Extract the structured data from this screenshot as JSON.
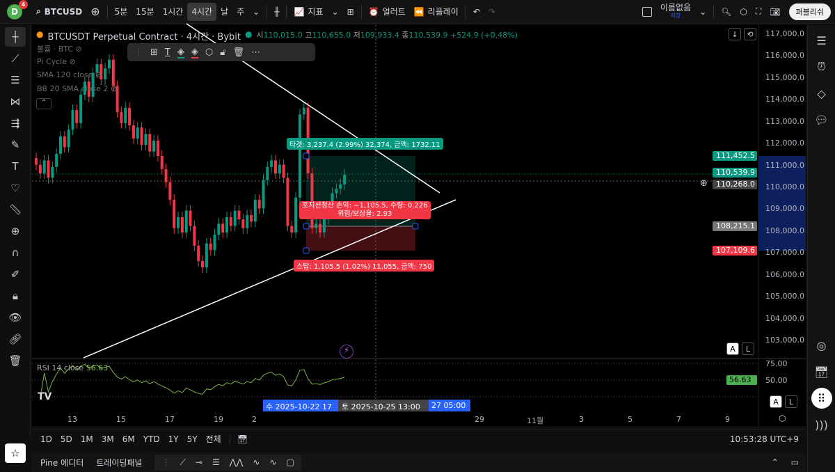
{
  "topbar": {
    "avatar": "D",
    "notifications": "4",
    "symbol": "BTCUSD",
    "intervals": [
      "5분",
      "15분",
      "1시간",
      "4시간",
      "날",
      "주"
    ],
    "active_interval": "4시간",
    "indicators": "지표",
    "alert": "얼러트",
    "replay": "리플레이",
    "layout_name": "이름없음",
    "layout_status": "저장",
    "publish": "퍼블리쉬"
  },
  "legend": {
    "title": "BTCUSDT Perpetual Contract · 4시간 · Bybit",
    "o_label": "시",
    "o": "110,015.0",
    "h_label": "고",
    "h": "110,655.0",
    "l_label": "저",
    "l": "109,933.4",
    "c_label": "종",
    "c": "110,539.9",
    "change": "+524.9 (+0.48%)"
  },
  "indicators": [
    "볼륨 · BTC",
    "Pi Cycle",
    "SMA 120 close",
    "BB 20 SMA close 2"
  ],
  "price_axis": [
    "117,000.0",
    "116,000.0",
    "115,000.0",
    "114,000.0",
    "113,000.0",
    "112,000.0",
    "111,000.0",
    "110,000.0",
    "109,000.0",
    "108,000.0",
    "107,000.0",
    "106,000.0",
    "105,000.0",
    "104,000.0",
    "103,000.0"
  ],
  "price_tags": {
    "target": "111,452.5",
    "last": "110,539.9",
    "crosshair": "110,268.0",
    "entry": "108,215.1",
    "stop": "107,109.6"
  },
  "colors": {
    "up": "#089981",
    "down": "#f23645",
    "target": "#089981",
    "stop": "#f23645",
    "accent": "#2962ff"
  },
  "position": {
    "target_label": "타겟: 3,237.4 (2.99%) 32,374, 금액: 1732.11",
    "pnl_label": "포지션청산 손익: −1,105.5, 수량: 0.226",
    "ratio_label": "위험/보상율: 2.93",
    "stop_label": "스탑: 1,105.5 (1.02%) 11,055, 금액: 750"
  },
  "rsi": {
    "label": "RSI 14 close",
    "value": "56.63",
    "axis": [
      "75.00",
      "50.00"
    ]
  },
  "time_axis": [
    "13",
    "15",
    "17",
    "19",
    "2",
    "29",
    "11월",
    "3",
    "5",
    "7",
    "9"
  ],
  "time_tags": [
    "수 2025-10-22  17",
    "토 2025-10-25  13:00",
    "27  05:00"
  ],
  "candles_close": [
    111000,
    110600,
    111200,
    110400,
    110900,
    111500,
    112300,
    111800,
    112600,
    113500,
    112900,
    114200,
    114800,
    114100,
    115200,
    115600,
    114900,
    115400,
    115800,
    114600,
    113400,
    112900,
    113600,
    112800,
    112200,
    112700,
    111900,
    112400,
    111600,
    112100,
    111400,
    110800,
    110200,
    109400,
    108100,
    108600,
    107900,
    108900,
    108200,
    107300,
    106600,
    106300,
    107400,
    107100,
    107800,
    108300,
    107900,
    108600,
    108200,
    108900,
    108500,
    108100,
    108700,
    108400,
    109400,
    109000,
    110300,
    110900,
    111200,
    110600,
    111000,
    110400,
    108200,
    107900,
    109500,
    113300,
    113600,
    110600,
    108100,
    108300,
    107900,
    108500,
    108900,
    109700,
    109900,
    110100,
    110540
  ],
  "ranges": [
    "1D",
    "5D",
    "1M",
    "3M",
    "6M",
    "YTD",
    "1Y",
    "5Y",
    "전체"
  ],
  "clock": "10:53:28 UTC+9",
  "bottom": {
    "pine": "Pine 에디터",
    "trading": "트레이딩패널"
  },
  "scale_buttons": [
    "A",
    "L"
  ]
}
